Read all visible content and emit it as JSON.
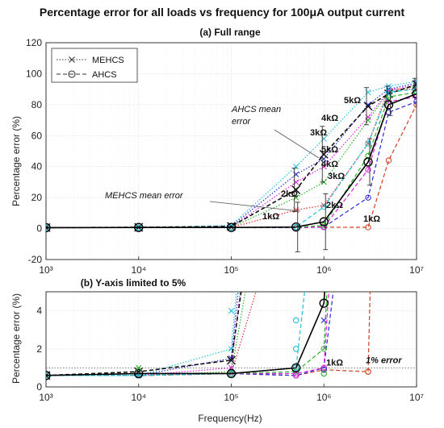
{
  "figure": {
    "title": "Percentage error for all loads vs frequency for 100μA output current",
    "xlabel": "Frequency(Hz)"
  },
  "chart_data": [
    {
      "type": "line",
      "panel": "a",
      "title": "(a) Full range",
      "ylabel": "Percentage error (%)",
      "x_scale": "log",
      "xlim": [
        1000,
        10000000
      ],
      "ylim": [
        -20,
        120
      ],
      "x_ticks": [
        1000,
        10000,
        100000,
        1000000,
        10000000
      ],
      "x_tick_labels": [
        "10³",
        "10⁴",
        "10⁵",
        "10⁶",
        "10⁷"
      ],
      "y_ticks": [
        -20,
        0,
        20,
        40,
        60,
        80,
        100,
        120
      ],
      "grid": true,
      "legend": {
        "position": "top-left",
        "entries": [
          {
            "label": "MEHCS",
            "style": "dotted",
            "marker": "x"
          },
          {
            "label": "AHCS",
            "style": "dashed",
            "marker": "o"
          }
        ]
      },
      "x": [
        1000,
        10000,
        100000,
        500000,
        1000000,
        3000000,
        5000000,
        10000000
      ],
      "series": [
        {
          "name": "1kΩ",
          "group": "MEHCS",
          "color": "#e03030",
          "values": [
            0.6,
            0.6,
            0.7,
            12,
            15,
            55,
            90,
            90
          ]
        },
        {
          "name": "2kΩ",
          "group": "MEHCS",
          "color": "#2ab02a",
          "values": [
            0.6,
            0.6,
            0.8,
            20,
            30,
            70,
            88,
            92
          ]
        },
        {
          "name": "3kΩ",
          "group": "MEHCS",
          "color": "#e020e0",
          "values": [
            0.6,
            0.6,
            1.0,
            30,
            40,
            72,
            89,
            93
          ]
        },
        {
          "name": "4kΩ",
          "group": "MEHCS",
          "color": "#2a2ad8",
          "values": [
            0.6,
            0.6,
            1.5,
            35,
            45,
            80,
            90,
            94
          ]
        },
        {
          "name": "5kΩ",
          "group": "MEHCS",
          "color": "#20c0d8",
          "values": [
            0.6,
            0.6,
            2.0,
            40,
            58,
            88,
            92,
            95
          ]
        },
        {
          "name": "MEHCS mean error",
          "group": "MEHCS",
          "color": "#111111",
          "values": [
            0.6,
            0.8,
            1.4,
            25,
            48,
            79,
            87,
            93
          ]
        },
        {
          "name": "1kΩ",
          "group": "AHCS",
          "color": "#d04020",
          "values": [
            0.6,
            0.6,
            0.7,
            0.6,
            0.9,
            0.8,
            44,
            80
          ]
        },
        {
          "name": "2kΩ",
          "group": "AHCS",
          "color": "#2a2ad8",
          "values": [
            0.6,
            0.6,
            0.7,
            0.6,
            1.0,
            20,
            75,
            82
          ]
        },
        {
          "name": "3kΩ",
          "group": "AHCS",
          "color": "#e020e0",
          "values": [
            0.6,
            0.6,
            0.7,
            0.7,
            1.0,
            38,
            82,
            85
          ]
        },
        {
          "name": "4kΩ",
          "group": "AHCS",
          "color": "#2ab02a",
          "values": [
            0.6,
            0.6,
            0.7,
            0.8,
            2.0,
            47,
            85,
            88
          ]
        },
        {
          "name": "5kΩ",
          "group": "AHCS",
          "color": "#20c0d8",
          "values": [
            0.6,
            0.6,
            0.7,
            1.0,
            14,
            55,
            88,
            90
          ]
        },
        {
          "name": "AHCS mean error",
          "group": "AHCS",
          "color": "#000000",
          "values": [
            0.6,
            0.7,
            0.7,
            1.0,
            4.4,
            43,
            80,
            87
          ]
        }
      ],
      "error_bars": {
        "x": [
          500000,
          1000000,
          3000000,
          5000000,
          10000000
        ],
        "mehcs_half_width": [
          14,
          18,
          12,
          5,
          4
        ],
        "ahcs_half_width": [
          16,
          18,
          15,
          7,
          6
        ]
      },
      "annotations": [
        "AHCS mean error",
        "MEHCS mean error",
        "5kΩ",
        "4kΩ",
        "3kΩ",
        "2kΩ",
        "1kΩ",
        "5kΩ",
        "4kΩ",
        "3kΩ",
        "2kΩ",
        "1kΩ"
      ]
    },
    {
      "type": "line",
      "panel": "b",
      "title": "(b) Y-axis limited to 5%",
      "ylabel": "Percentage error (%)",
      "x_scale": "log",
      "xlim": [
        1000,
        10000000
      ],
      "ylim": [
        0,
        5
      ],
      "y_ticks": [
        0,
        2,
        4
      ],
      "grid": true,
      "reference_line": {
        "y": 1,
        "label": "1% error"
      },
      "annotations": [
        "1kΩ"
      ],
      "series_note": "same series as panel (a), clipped at 5%",
      "extra_points": [
        {
          "x": 100000,
          "y": 4.0,
          "marker": "x",
          "color": "#20c0d8"
        },
        {
          "x": 500000,
          "y": 3.5,
          "marker": "o",
          "color": "#20c0d8"
        },
        {
          "x": 1000000,
          "y": 3.5,
          "marker": "x",
          "color": "#2a2ad8"
        },
        {
          "x": 500000,
          "y": 2.0,
          "marker": "o",
          "color": "#20c0d8"
        },
        {
          "x": 10000,
          "y": 1.0,
          "marker": "x",
          "color": "#2ab02a"
        },
        {
          "x": 1000000,
          "y": 0.9,
          "marker": "o",
          "color": "#2a2ad8"
        },
        {
          "x": 1000000,
          "y": 0.7,
          "marker": "o",
          "color": "#2ab02a"
        },
        {
          "x": 500000,
          "y": 0.6,
          "marker": "o",
          "color": "#e020e0"
        },
        {
          "x": 3000000,
          "y": 0.8,
          "marker": "o",
          "color": "#d04020"
        }
      ]
    }
  ],
  "colors": {
    "axis": "#222222",
    "grid": "#d6d6d6",
    "mean": "#000000"
  }
}
